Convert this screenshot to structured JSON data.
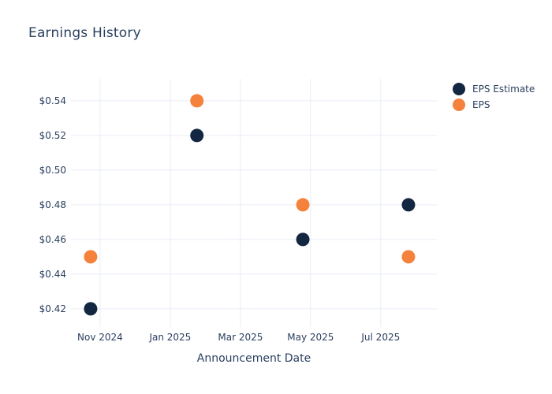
{
  "title": "Earnings History",
  "colors": {
    "background": "#ffffff",
    "text": "#2a3f5f",
    "grid": "#e9eef6",
    "eps_estimate_marker": "#132642",
    "eps_marker": "#f5823c"
  },
  "chart_data": {
    "type": "scatter",
    "title": "Earnings History",
    "xlabel": "Announcement Date",
    "ylabel": "",
    "grid": true,
    "legend_position": "right-top",
    "x_axis": {
      "unit": "months since Nov 2024",
      "range": [
        -0.83,
        9.6
      ],
      "ticks": [
        {
          "pos": 0,
          "label": "Nov 2024"
        },
        {
          "pos": 2,
          "label": "Jan 2025"
        },
        {
          "pos": 4,
          "label": "Mar 2025"
        },
        {
          "pos": 6,
          "label": "May 2025"
        },
        {
          "pos": 8,
          "label": "Jul 2025"
        }
      ]
    },
    "y_axis": {
      "range": [
        0.4095,
        0.5527
      ],
      "ticks": [
        {
          "value": 0.42,
          "label": "$0.42"
        },
        {
          "value": 0.44,
          "label": "$0.44"
        },
        {
          "value": 0.46,
          "label": "$0.46"
        },
        {
          "value": 0.48,
          "label": "$0.48"
        },
        {
          "value": 0.5,
          "label": "$0.50"
        },
        {
          "value": 0.52,
          "label": "$0.52"
        },
        {
          "value": 0.54,
          "label": "$0.54"
        }
      ]
    },
    "series": [
      {
        "name": "EPS Estimate",
        "color": "#132642",
        "marker_diameter": 17,
        "points": [
          {
            "x": -0.27,
            "approx_date": "late Oct 2024",
            "y": 0.42
          },
          {
            "x": 2.76,
            "approx_date": "late Jan 2025",
            "y": 0.52
          },
          {
            "x": 5.78,
            "approx_date": "late Apr 2025",
            "y": 0.46
          },
          {
            "x": 8.79,
            "approx_date": "late Jul 2025",
            "y": 0.48
          }
        ]
      },
      {
        "name": "EPS",
        "color": "#f5823c",
        "marker_diameter": 17,
        "points": [
          {
            "x": -0.27,
            "approx_date": "late Oct 2024",
            "y": 0.45
          },
          {
            "x": 2.76,
            "approx_date": "late Jan 2025",
            "y": 0.54
          },
          {
            "x": 5.78,
            "approx_date": "late Apr 2025",
            "y": 0.48
          },
          {
            "x": 8.79,
            "approx_date": "late Jul 2025",
            "y": 0.45
          }
        ]
      }
    ]
  }
}
